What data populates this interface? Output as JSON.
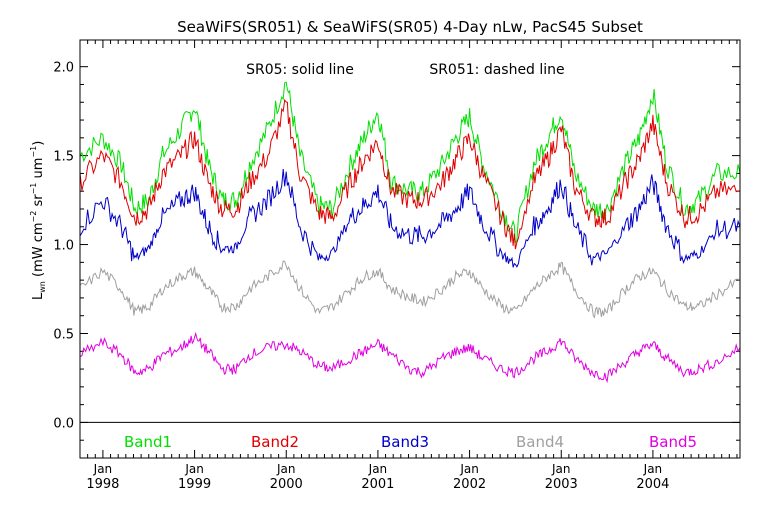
{
  "chart_data": {
    "type": "line",
    "title": "SeaWiFS(SR051) & SeaWiFS(SR05) 4-Day nLw, PacS45 Subset",
    "subtitle_left": "SR05: solid line",
    "subtitle_right": "SR051: dashed line",
    "ylabel": {
      "base": "L",
      "sub": "wn",
      "units_a": " (mW cm",
      "sup1": "−2",
      "units_b": " sr",
      "sup2": "−1",
      "units_c": " um",
      "sup3": "−1",
      "close": ")"
    },
    "ylim": [
      -0.2,
      2.15
    ],
    "xlim": [
      1997.75,
      2004.95
    ],
    "y_ticks": [
      0.0,
      0.5,
      1.0,
      1.5,
      2.0
    ],
    "y_tick_labels": [
      "0.0",
      "0.5",
      "1.0",
      "1.5",
      "2.0"
    ],
    "x_ticks": [
      {
        "month": "Jan",
        "year": "1998",
        "x": 1998.0
      },
      {
        "month": "Jan",
        "year": "1999",
        "x": 1999.0
      },
      {
        "month": "Jan",
        "year": "2000",
        "x": 2000.0
      },
      {
        "month": "Jan",
        "year": "2001",
        "x": 2001.0
      },
      {
        "month": "Jan",
        "year": "2002",
        "x": 2002.0
      },
      {
        "month": "Jan",
        "year": "2003",
        "x": 2003.0
      },
      {
        "month": "Jan",
        "year": "2004",
        "x": 2004.0
      }
    ],
    "zero_line": true,
    "grid": false,
    "legend_position": "bottom",
    "series": [
      {
        "name": "Band1",
        "color": "#00e000",
        "x": [
          1997.75,
          1998.0,
          1998.2,
          1998.35,
          1998.5,
          1998.65,
          1998.85,
          1999.0,
          1999.15,
          1999.3,
          1999.45,
          1999.6,
          1999.8,
          2000.0,
          2000.15,
          2000.35,
          2000.5,
          2000.7,
          2000.85,
          2001.0,
          2001.15,
          2001.35,
          2001.5,
          2001.7,
          2001.85,
          2002.0,
          2002.15,
          2002.35,
          2002.5,
          2002.7,
          2002.85,
          2003.0,
          2003.15,
          2003.35,
          2003.5,
          2003.7,
          2003.85,
          2004.0,
          2004.15,
          2004.35,
          2004.5,
          2004.7,
          2004.95
        ],
        "values": [
          1.5,
          1.6,
          1.45,
          1.2,
          1.25,
          1.5,
          1.65,
          1.78,
          1.45,
          1.25,
          1.25,
          1.45,
          1.65,
          1.92,
          1.5,
          1.22,
          1.2,
          1.45,
          1.6,
          1.75,
          1.35,
          1.3,
          1.3,
          1.45,
          1.6,
          1.72,
          1.45,
          1.2,
          1.05,
          1.45,
          1.6,
          1.75,
          1.4,
          1.2,
          1.2,
          1.45,
          1.6,
          1.85,
          1.45,
          1.2,
          1.25,
          1.4,
          1.4
        ]
      },
      {
        "name": "Band2",
        "color": "#e00000",
        "x": [
          1997.75,
          1998.0,
          1998.2,
          1998.35,
          1998.5,
          1998.65,
          1998.85,
          1999.0,
          1999.15,
          1999.3,
          1999.45,
          1999.6,
          1999.8,
          2000.0,
          2000.15,
          2000.35,
          2000.5,
          2000.7,
          2000.85,
          2001.0,
          2001.15,
          2001.35,
          2001.5,
          2001.7,
          2001.85,
          2002.0,
          2002.15,
          2002.35,
          2002.5,
          2002.7,
          2002.85,
          2003.0,
          2003.15,
          2003.35,
          2003.5,
          2003.7,
          2003.85,
          2004.0,
          2004.15,
          2004.35,
          2004.5,
          2004.7,
          2004.95
        ],
        "values": [
          1.35,
          1.5,
          1.35,
          1.15,
          1.2,
          1.4,
          1.5,
          1.6,
          1.35,
          1.2,
          1.2,
          1.35,
          1.5,
          1.78,
          1.4,
          1.18,
          1.15,
          1.35,
          1.48,
          1.58,
          1.3,
          1.25,
          1.25,
          1.35,
          1.48,
          1.6,
          1.38,
          1.15,
          1.0,
          1.35,
          1.48,
          1.65,
          1.32,
          1.15,
          1.15,
          1.35,
          1.48,
          1.68,
          1.35,
          1.15,
          1.18,
          1.3,
          1.3
        ]
      },
      {
        "name": "Band3",
        "color": "#0000c8",
        "x": [
          1997.75,
          1998.0,
          1998.2,
          1998.35,
          1998.5,
          1998.65,
          1998.85,
          1999.0,
          1999.15,
          1999.3,
          1999.45,
          1999.6,
          1999.8,
          2000.0,
          2000.15,
          2000.35,
          2000.5,
          2000.7,
          2000.85,
          2001.0,
          2001.15,
          2001.35,
          2001.5,
          2001.7,
          2001.85,
          2002.0,
          2002.15,
          2002.35,
          2002.5,
          2002.7,
          2002.85,
          2003.0,
          2003.15,
          2003.35,
          2003.5,
          2003.7,
          2003.85,
          2004.0,
          2004.15,
          2004.35,
          2004.5,
          2004.7,
          2004.95
        ],
        "values": [
          1.1,
          1.25,
          1.1,
          0.92,
          0.98,
          1.15,
          1.25,
          1.3,
          1.1,
          0.98,
          0.98,
          1.15,
          1.25,
          1.4,
          1.1,
          0.92,
          0.95,
          1.15,
          1.22,
          1.3,
          1.1,
          1.05,
          1.05,
          1.12,
          1.2,
          1.3,
          1.12,
          0.95,
          0.88,
          1.1,
          1.2,
          1.35,
          1.1,
          0.92,
          0.95,
          1.1,
          1.2,
          1.35,
          1.1,
          0.92,
          0.95,
          1.08,
          1.1
        ]
      },
      {
        "name": "Band4",
        "color": "#a0a0a0",
        "x": [
          1997.75,
          1998.0,
          1998.2,
          1998.35,
          1998.5,
          1998.65,
          1998.85,
          1999.0,
          1999.15,
          1999.3,
          1999.45,
          1999.6,
          1999.8,
          2000.0,
          2000.15,
          2000.35,
          2000.5,
          2000.7,
          2000.85,
          2001.0,
          2001.15,
          2001.35,
          2001.5,
          2001.7,
          2001.85,
          2002.0,
          2002.15,
          2002.35,
          2002.5,
          2002.7,
          2002.85,
          2003.0,
          2003.15,
          2003.35,
          2003.5,
          2003.7,
          2003.85,
          2004.0,
          2004.15,
          2004.35,
          2004.5,
          2004.7,
          2004.95
        ],
        "values": [
          0.75,
          0.85,
          0.75,
          0.62,
          0.65,
          0.75,
          0.82,
          0.85,
          0.75,
          0.65,
          0.65,
          0.75,
          0.82,
          0.9,
          0.75,
          0.62,
          0.65,
          0.75,
          0.82,
          0.85,
          0.75,
          0.7,
          0.68,
          0.75,
          0.82,
          0.85,
          0.75,
          0.65,
          0.62,
          0.75,
          0.82,
          0.88,
          0.75,
          0.62,
          0.62,
          0.75,
          0.82,
          0.85,
          0.75,
          0.65,
          0.65,
          0.72,
          0.8
        ]
      },
      {
        "name": "Band5",
        "color": "#e000e0",
        "x": [
          1997.75,
          1998.0,
          1998.2,
          1998.35,
          1998.5,
          1998.65,
          1998.85,
          1999.0,
          1999.15,
          1999.3,
          1999.45,
          1999.6,
          1999.8,
          2000.0,
          2000.15,
          2000.35,
          2000.5,
          2000.7,
          2000.85,
          2001.0,
          2001.15,
          2001.35,
          2001.5,
          2001.7,
          2001.85,
          2002.0,
          2002.15,
          2002.35,
          2002.5,
          2002.7,
          2002.85,
          2003.0,
          2003.15,
          2003.35,
          2003.5,
          2003.7,
          2003.85,
          2004.0,
          2004.15,
          2004.35,
          2004.5,
          2004.7,
          2004.95
        ],
        "values": [
          0.38,
          0.45,
          0.38,
          0.28,
          0.3,
          0.38,
          0.42,
          0.48,
          0.4,
          0.3,
          0.3,
          0.38,
          0.42,
          0.44,
          0.4,
          0.32,
          0.3,
          0.36,
          0.4,
          0.44,
          0.38,
          0.3,
          0.28,
          0.36,
          0.4,
          0.42,
          0.36,
          0.3,
          0.28,
          0.36,
          0.4,
          0.46,
          0.36,
          0.28,
          0.26,
          0.34,
          0.4,
          0.44,
          0.36,
          0.28,
          0.3,
          0.34,
          0.42
        ]
      }
    ]
  }
}
